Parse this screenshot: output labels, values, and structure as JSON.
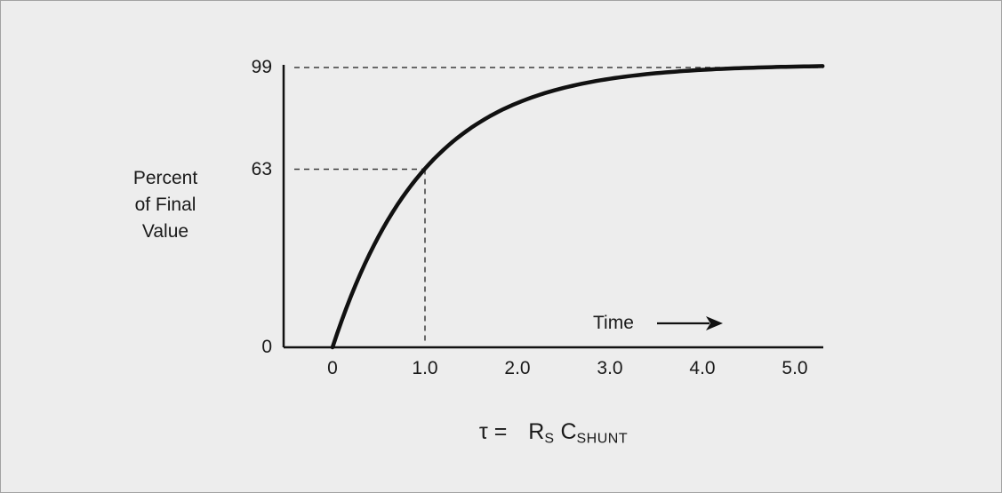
{
  "chart_data": {
    "type": "line",
    "title": "",
    "ylabel": "Percent of Final Value",
    "ylabel_lines": [
      "Percent",
      "of Final",
      "Value"
    ],
    "xlabel": "τ = RS CSHUNT",
    "x_ticks": [
      "0",
      "1.0",
      "2.0",
      "3.0",
      "4.0",
      "5.0"
    ],
    "y_ticks": [
      "0",
      "63",
      "99"
    ],
    "xlim": [
      0,
      5.3
    ],
    "ylim": [
      0,
      100
    ],
    "grid": false,
    "series": [
      {
        "name": "rc-charging-curve",
        "model": {
          "type": "exponential_rise",
          "formula": "y = 100(1 - e^(-t/tau))",
          "amplitude": 100,
          "tau": 1
        },
        "points": [
          [
            0,
            0
          ],
          [
            0.25,
            22.1
          ],
          [
            0.5,
            39.3
          ],
          [
            0.75,
            52.8
          ],
          [
            1.0,
            63.2
          ],
          [
            1.25,
            71.3
          ],
          [
            1.5,
            77.7
          ],
          [
            1.75,
            82.6
          ],
          [
            2.0,
            86.5
          ],
          [
            2.5,
            91.8
          ],
          [
            3.0,
            95.0
          ],
          [
            3.5,
            97.0
          ],
          [
            4.0,
            98.2
          ],
          [
            4.5,
            98.9
          ],
          [
            5.0,
            99.3
          ],
          [
            5.3,
            99.5
          ]
        ]
      }
    ],
    "annotations": {
      "time_label": "Time",
      "dashed_y_levels": [
        99,
        63
      ],
      "dashed_vertical_x": 1.0
    }
  },
  "caption": {
    "tau": "τ",
    "equals": "=",
    "r_base": "R",
    "r_sub": "S",
    "c_base": "C",
    "c_sub": "SHUNT"
  }
}
